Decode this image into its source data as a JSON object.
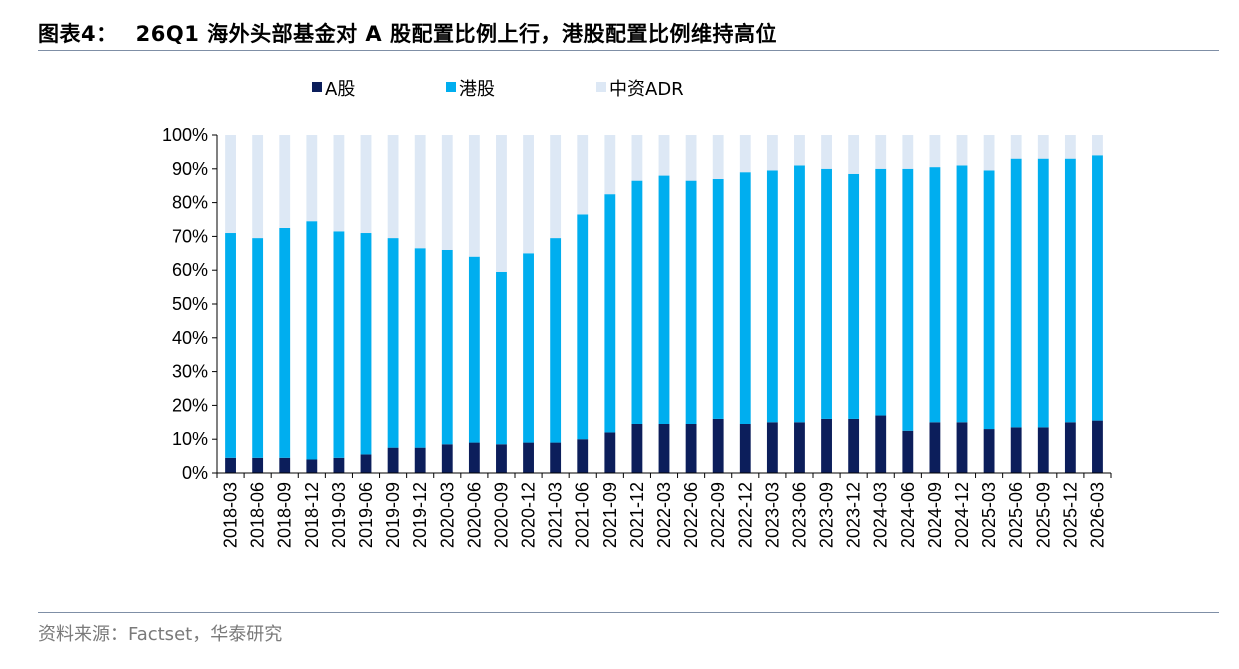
{
  "header": {
    "figure_label": "图表4：",
    "title": "26Q1 海外头部基金对 A 股配置比例上行，港股配置比例维持高位"
  },
  "footer": {
    "source": "资料来源：Factset，华泰研究"
  },
  "chart_data": {
    "type": "bar",
    "stacked": true,
    "categories": [
      "2018-03",
      "2018-06",
      "2018-09",
      "2018-12",
      "2019-03",
      "2019-06",
      "2019-09",
      "2019-12",
      "2020-03",
      "2020-06",
      "2020-09",
      "2020-12",
      "2021-03",
      "2021-06",
      "2021-09",
      "2021-12",
      "2022-03",
      "2022-06",
      "2022-09",
      "2022-12",
      "2023-03",
      "2023-06",
      "2023-09",
      "2023-12",
      "2024-03",
      "2024-06",
      "2024-09",
      "2024-12",
      "2025-03",
      "2025-06",
      "2025-09",
      "2025-12",
      "2026-03"
    ],
    "series": [
      {
        "name": "A股",
        "color": "#0c1e5b",
        "values": [
          4.5,
          4.5,
          4.5,
          4,
          4.5,
          5.5,
          7.5,
          7.5,
          8.5,
          9,
          8.5,
          9,
          9,
          10,
          12,
          14.5,
          14.5,
          14.5,
          16,
          14.5,
          15,
          15,
          16,
          16,
          17,
          12.5,
          15,
          15,
          13,
          13.5,
          13.5,
          15,
          15.5
        ]
      },
      {
        "name": "港股",
        "color": "#00aeef",
        "values": [
          66.5,
          65,
          68,
          70.5,
          67,
          65.5,
          62,
          59,
          57.5,
          55,
          51,
          56,
          60.5,
          66.5,
          70.5,
          72,
          73.5,
          72,
          71,
          74.5,
          74.5,
          76,
          74,
          72.5,
          73,
          77.5,
          75.5,
          76,
          76.5,
          79.5,
          79.5,
          78,
          78.5
        ]
      },
      {
        "name": "中资ADR",
        "color": "#dde8f5",
        "values": [
          29,
          30.5,
          27.5,
          25.5,
          28.5,
          29,
          30.5,
          33.5,
          34,
          36,
          40.5,
          35,
          30.5,
          23.5,
          17.5,
          13.5,
          12,
          13.5,
          13,
          11,
          10.5,
          9,
          10,
          11.5,
          10,
          10,
          9.5,
          9,
          10.5,
          7,
          7,
          7,
          6
        ]
      }
    ],
    "y_ticks": [
      "0%",
      "10%",
      "20%",
      "30%",
      "40%",
      "50%",
      "60%",
      "70%",
      "80%",
      "90%",
      "100%"
    ],
    "ylim": [
      0,
      100
    ],
    "legend_position": "top",
    "grid": false
  }
}
